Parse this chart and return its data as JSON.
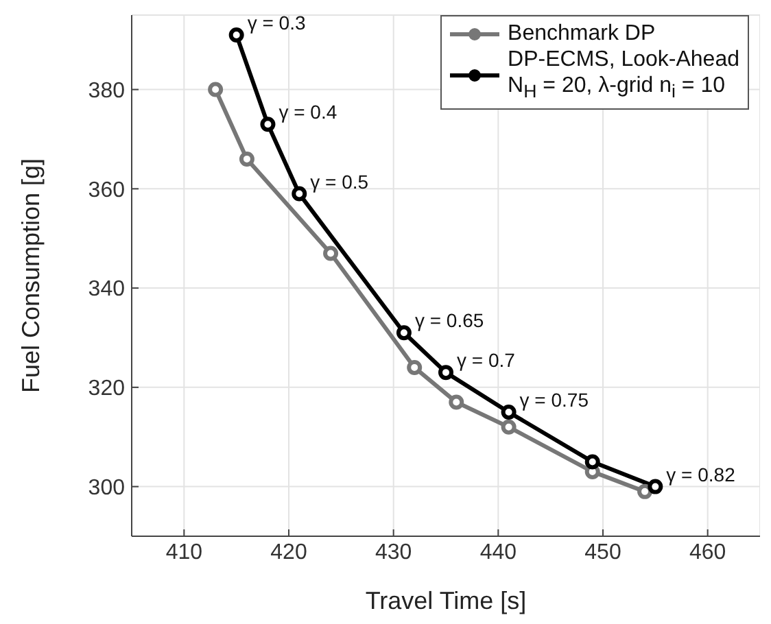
{
  "chart_data": {
    "type": "line",
    "xlabel": "Travel Time [s]",
    "ylabel": "Fuel Consumption [g]",
    "xlim": [
      405,
      465
    ],
    "xticks": [
      410,
      420,
      430,
      440,
      450,
      460
    ],
    "ylim": [
      290,
      395
    ],
    "yticks": [
      300,
      320,
      340,
      360,
      380
    ],
    "grid": true,
    "legend": "top right",
    "marker": "circle",
    "line_style": "solid",
    "series": [
      {
        "name": "Benchmark DP",
        "color": "#777777",
        "x": [
          413,
          416,
          424,
          432,
          436,
          441,
          449,
          454
        ],
        "values": [
          380,
          366,
          347,
          324,
          317,
          312,
          303,
          299
        ]
      },
      {
        "name": "DP-ECMS, Look-Ahead\nN$_{H}$ = 20, λ-grid n$_{i}$ = 10",
        "color": "#000000",
        "x": [
          415,
          418,
          421,
          431,
          435,
          441,
          449,
          455
        ],
        "values": [
          391,
          373,
          359,
          331,
          323,
          315,
          305,
          300
        ]
      }
    ],
    "annotations": [
      {
        "text": "γ = 0.3",
        "x": 415,
        "y": 391
      },
      {
        "text": "γ = 0.4",
        "x": 418,
        "y": 373
      },
      {
        "text": "γ = 0.5",
        "x": 421,
        "y": 359
      },
      {
        "text": "γ = 0.65",
        "x": 431,
        "y": 331
      },
      {
        "text": "γ = 0.7",
        "x": 435,
        "y": 323
      },
      {
        "text": "γ = 0.75",
        "x": 441,
        "y": 315
      },
      {
        "text": "γ = 0.82",
        "x": 455,
        "y": 300
      }
    ]
  }
}
